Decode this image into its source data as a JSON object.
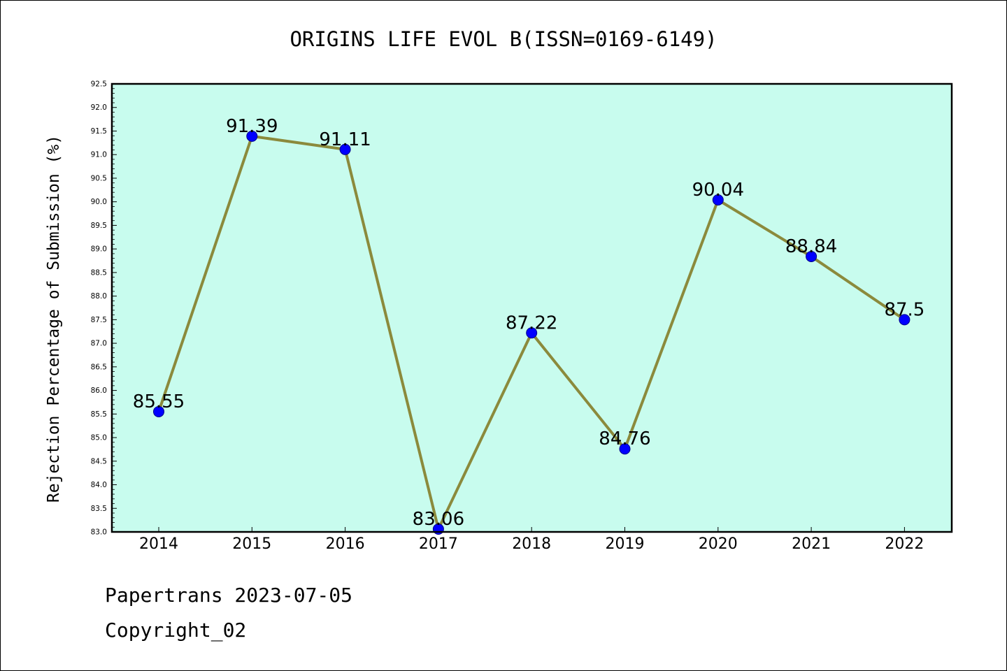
{
  "chart_data": {
    "type": "line",
    "title": "ORIGINS LIFE EVOL B(ISSN=0169-6149)",
    "xlabel": "",
    "ylabel": "Rejection Percentage of Submission (%)",
    "categories": [
      "2014",
      "2015",
      "2016",
      "2017",
      "2018",
      "2019",
      "2020",
      "2021",
      "2022"
    ],
    "series": [
      {
        "values": [
          85.55,
          91.39,
          91.11,
          83.06,
          87.22,
          84.76,
          90.04,
          88.84,
          87.5
        ],
        "labels": [
          "85.55",
          "91.39",
          "91.11",
          "83.06",
          "87.22",
          "84.76",
          "90.04",
          "88.84",
          "87.5"
        ]
      }
    ],
    "ylim": [
      83.0,
      92.5
    ],
    "yticks": [
      "83.0",
      "83.5",
      "84.0",
      "84.5",
      "85.0",
      "85.5",
      "86.0",
      "86.5",
      "87.0",
      "87.5",
      "88.0",
      "88.5",
      "89.0",
      "89.5",
      "90.0",
      "90.5",
      "91.0",
      "91.5",
      "92.0",
      "92.5"
    ],
    "grid": false,
    "colors": {
      "plot_background": "#c8fcee",
      "line": "#8b8a3c",
      "marker": "#0000ff"
    }
  },
  "footer": {
    "line1": "Papertrans 2023-07-05",
    "line2": "Copyright_02"
  }
}
